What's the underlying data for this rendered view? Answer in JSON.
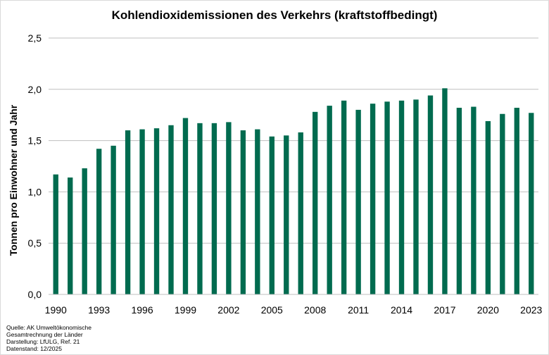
{
  "chart_data": {
    "type": "bar",
    "title": "Kohlendioxidemissionen des Verkehrs (kraftstoffbedingt)",
    "xlabel": "",
    "ylabel": "Tonnen pro Einwohner und Jahr",
    "ylim": [
      0,
      2.5
    ],
    "yticks": [
      "0,0",
      "0,5",
      "1,0",
      "1,5",
      "2,0",
      "2,5"
    ],
    "ytick_values": [
      0,
      0.5,
      1.0,
      1.5,
      2.0,
      2.5
    ],
    "categories": [
      "1990",
      "1991",
      "1992",
      "1993",
      "1994",
      "1995",
      "1996",
      "1997",
      "1998",
      "1999",
      "2000",
      "2001",
      "2002",
      "2003",
      "2004",
      "2005",
      "2006",
      "2007",
      "2008",
      "2009",
      "2010",
      "2011",
      "2012",
      "2013",
      "2014",
      "2015",
      "2016",
      "2017",
      "2018",
      "2019",
      "2020",
      "2021",
      "2022",
      "2023"
    ],
    "xtick_labels": [
      "1990",
      "1993",
      "1996",
      "1999",
      "2002",
      "2005",
      "2008",
      "2011",
      "2014",
      "2017",
      "2020",
      "2023"
    ],
    "values": [
      1.17,
      1.14,
      1.23,
      1.42,
      1.45,
      1.6,
      1.61,
      1.62,
      1.65,
      1.72,
      1.67,
      1.67,
      1.68,
      1.6,
      1.61,
      1.54,
      1.55,
      1.58,
      1.78,
      1.84,
      1.89,
      1.8,
      1.86,
      1.88,
      1.89,
      1.9,
      1.94,
      2.01,
      1.82,
      1.83,
      1.69,
      1.76,
      1.82,
      1.77
    ],
    "bar_color": "#006b4f",
    "grid": true,
    "legend": "none"
  },
  "source": {
    "lines": [
      "Quelle: AK Umweltökonomische",
      "Gesamtrechnung  der Länder",
      "Darstellung:  LfULG, Ref. 21",
      "Datenstand:  12/2025"
    ]
  }
}
